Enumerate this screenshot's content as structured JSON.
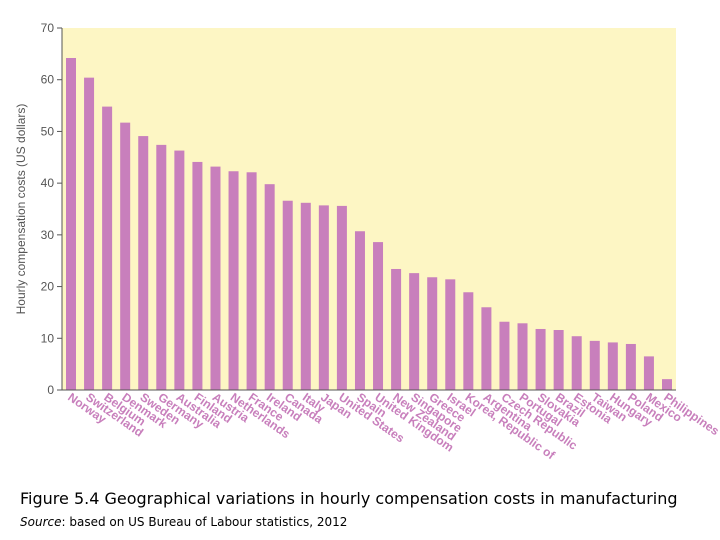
{
  "chart_data": {
    "type": "bar",
    "title": "",
    "xlabel": "",
    "ylabel": "Hourly compensation costs (US dollars)",
    "ylim": [
      0,
      70
    ],
    "yticks": [
      0,
      10,
      20,
      30,
      40,
      50,
      60,
      70
    ],
    "grid": false,
    "categories": [
      "Norway",
      "Switzerland",
      "Belgium",
      "Denmark",
      "Sweden",
      "Germany",
      "Australia",
      "Finland",
      "Austria",
      "Netherlands",
      "France",
      "Ireland",
      "Canada",
      "Italy",
      "Japan",
      "United States",
      "Spain",
      "United Kingdom",
      "New Zealand",
      "Singapore",
      "Greece",
      "Israel",
      "Korea, Republic of",
      "Argentina",
      "Czech Republic",
      "Portugal",
      "Slovakia",
      "Brazil",
      "Estonia",
      "Taiwan",
      "Hungary",
      "Poland",
      "Mexico",
      "Philippines"
    ],
    "values": [
      64.2,
      60.4,
      54.8,
      51.7,
      49.1,
      47.4,
      46.3,
      44.1,
      43.2,
      42.3,
      42.1,
      39.8,
      36.6,
      36.2,
      35.7,
      35.6,
      30.7,
      28.6,
      23.4,
      22.6,
      21.8,
      21.4,
      18.9,
      16.0,
      13.2,
      12.9,
      11.8,
      11.6,
      10.4,
      9.5,
      9.2,
      8.9,
      6.5,
      2.1
    ],
    "colors": {
      "bar": "#c87fbc",
      "plot_background": "#fdf6c4",
      "axis": "#555555"
    }
  },
  "caption": {
    "figure_text": "Figure 5.4 Geographical variations in hourly compensation costs in manufacturing",
    "source_label": "Source",
    "source_text": ": based on US Bureau of Labour statistics, 2012"
  }
}
